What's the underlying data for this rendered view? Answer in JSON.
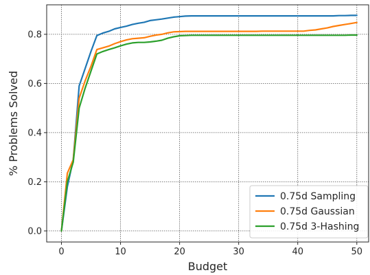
{
  "chart_data": {
    "type": "line",
    "xlabel": "Budget",
    "ylabel": "% Problems Solved",
    "xlim": [
      -2.5,
      52
    ],
    "ylim": [
      -0.045,
      0.92
    ],
    "xticks": [
      0,
      10,
      20,
      30,
      40,
      50
    ],
    "yticks": [
      0.0,
      0.2,
      0.4,
      0.6,
      0.8
    ],
    "ytick_labels": [
      "0.0",
      "0.2",
      "0.4",
      "0.6",
      "0.8"
    ],
    "grid": true,
    "legend_position": "lower-right",
    "x": [
      0,
      1,
      2,
      3,
      4,
      5,
      6,
      7,
      8,
      9,
      10,
      11,
      12,
      13,
      14,
      15,
      16,
      17,
      18,
      19,
      20,
      21,
      22,
      23,
      24,
      25,
      26,
      27,
      28,
      29,
      30,
      31,
      32,
      33,
      34,
      35,
      36,
      37,
      38,
      39,
      40,
      41,
      42,
      43,
      44,
      45,
      46,
      47,
      48,
      49,
      50
    ],
    "series": [
      {
        "name": "0.75d Sampling",
        "color": "#1f77b4",
        "values": [
          0.0,
          0.18,
          0.29,
          0.59,
          0.66,
          0.73,
          0.795,
          0.805,
          0.812,
          0.822,
          0.828,
          0.833,
          0.84,
          0.845,
          0.849,
          0.856,
          0.859,
          0.862,
          0.866,
          0.87,
          0.872,
          0.874,
          0.875,
          0.875,
          0.875,
          0.875,
          0.875,
          0.875,
          0.875,
          0.875,
          0.875,
          0.875,
          0.875,
          0.875,
          0.875,
          0.875,
          0.875,
          0.875,
          0.875,
          0.875,
          0.875,
          0.875,
          0.875,
          0.875,
          0.875,
          0.875,
          0.875,
          0.876,
          0.876,
          0.877,
          0.877
        ]
      },
      {
        "name": "0.75d Gaussian",
        "color": "#ff7f0e",
        "values": [
          0.0,
          0.235,
          0.29,
          0.54,
          0.61,
          0.67,
          0.738,
          0.745,
          0.752,
          0.762,
          0.77,
          0.777,
          0.782,
          0.784,
          0.786,
          0.792,
          0.797,
          0.8,
          0.806,
          0.81,
          0.811,
          0.812,
          0.812,
          0.812,
          0.812,
          0.812,
          0.812,
          0.812,
          0.812,
          0.812,
          0.812,
          0.812,
          0.812,
          0.812,
          0.813,
          0.813,
          0.813,
          0.813,
          0.813,
          0.813,
          0.813,
          0.813,
          0.816,
          0.818,
          0.822,
          0.826,
          0.832,
          0.836,
          0.84,
          0.844,
          0.848
        ]
      },
      {
        "name": "0.75d 3-Hashing",
        "color": "#2ca02c",
        "values": [
          0.0,
          0.2,
          0.28,
          0.5,
          0.58,
          0.65,
          0.72,
          0.73,
          0.738,
          0.745,
          0.753,
          0.76,
          0.765,
          0.767,
          0.767,
          0.769,
          0.772,
          0.776,
          0.784,
          0.79,
          0.794,
          0.795,
          0.796,
          0.796,
          0.796,
          0.796,
          0.796,
          0.796,
          0.796,
          0.796,
          0.796,
          0.796,
          0.796,
          0.796,
          0.796,
          0.796,
          0.796,
          0.796,
          0.796,
          0.796,
          0.796,
          0.796,
          0.796,
          0.796,
          0.796,
          0.796,
          0.796,
          0.796,
          0.796,
          0.797,
          0.797
        ]
      }
    ]
  }
}
